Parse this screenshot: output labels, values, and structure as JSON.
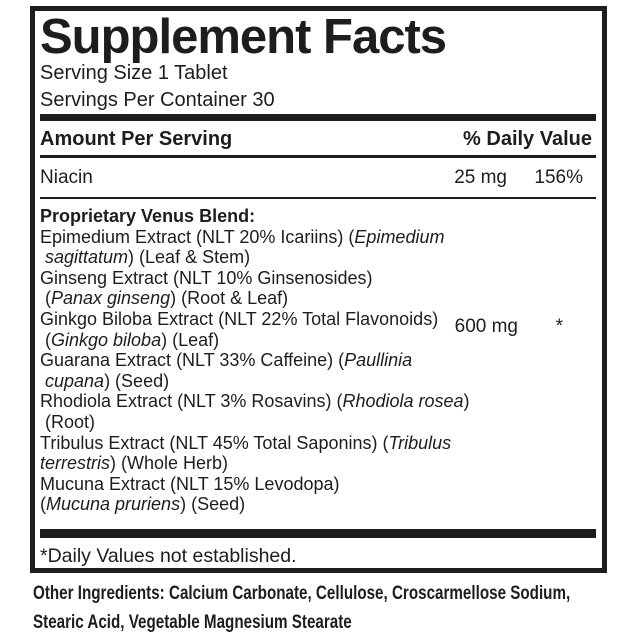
{
  "colors": {
    "ink": "#1d1d1b",
    "background": "#ffffff"
  },
  "label": {
    "title": "Supplement Facts",
    "serving_size": "Serving Size 1 Tablet",
    "servings_per_container": "Servings Per Container 30",
    "header": {
      "amount_label": "Amount Per Serving",
      "dv_label": "% Daily Value"
    },
    "rows": [
      {
        "name": "Niacin",
        "amount": "25 mg",
        "dv": "156%"
      }
    ],
    "blend": {
      "title": "Proprietary Venus Blend:",
      "amount": "600 mg",
      "dv": "*",
      "lines": [
        {
          "indent": false,
          "segments": [
            {
              "text": "Epimedium Extract (NLT 20% Icariins) (",
              "italic": false
            },
            {
              "text": "Epimedium",
              "italic": true
            }
          ]
        },
        {
          "indent": true,
          "segments": [
            {
              "text": "sagittatum",
              "italic": true
            },
            {
              "text": ") (Leaf & Stem)",
              "italic": false
            }
          ]
        },
        {
          "indent": false,
          "segments": [
            {
              "text": "Ginseng Extract (NLT 10% Ginsenosides)",
              "italic": false
            }
          ]
        },
        {
          "indent": true,
          "segments": [
            {
              "text": "(",
              "italic": false
            },
            {
              "text": "Panax ginseng",
              "italic": true
            },
            {
              "text": ") (Root & Leaf)",
              "italic": false
            }
          ]
        },
        {
          "indent": false,
          "segments": [
            {
              "text": "Ginkgo Biloba Extract (NLT 22% Total Flavonoids)",
              "italic": false
            }
          ]
        },
        {
          "indent": true,
          "segments": [
            {
              "text": "(",
              "italic": false
            },
            {
              "text": "Ginkgo biloba",
              "italic": true
            },
            {
              "text": ") (Leaf)",
              "italic": false
            }
          ]
        },
        {
          "indent": false,
          "segments": [
            {
              "text": "Guarana Extract (NLT 33% Caffeine) (",
              "italic": false
            },
            {
              "text": "Paullinia",
              "italic": true
            }
          ]
        },
        {
          "indent": true,
          "segments": [
            {
              "text": "cupana",
              "italic": true
            },
            {
              "text": ") (Seed)",
              "italic": false
            }
          ]
        },
        {
          "indent": false,
          "segments": [
            {
              "text": "Rhodiola Extract (NLT 3% Rosavins) (",
              "italic": false
            },
            {
              "text": "Rhodiola rosea",
              "italic": true
            },
            {
              "text": ")",
              "italic": false
            }
          ]
        },
        {
          "indent": true,
          "segments": [
            {
              "text": "(Root)",
              "italic": false
            }
          ]
        },
        {
          "indent": false,
          "segments": [
            {
              "text": "Tribulus Extract (NLT 45% Total Saponins) (",
              "italic": false
            },
            {
              "text": "Tribulus",
              "italic": true
            }
          ]
        },
        {
          "indent": false,
          "segments": [
            {
              "text": "terrestris",
              "italic": true
            },
            {
              "text": ") (Whole Herb)",
              "italic": false
            }
          ]
        },
        {
          "indent": false,
          "segments": [
            {
              "text": "Mucuna Extract (NLT 15% Levodopa)",
              "italic": false
            }
          ]
        },
        {
          "indent": false,
          "segments": [
            {
              "text": "(",
              "italic": false
            },
            {
              "text": "Mucuna pruriens",
              "italic": true
            },
            {
              "text": ") (Seed)",
              "italic": false
            }
          ]
        }
      ]
    },
    "footnote": "*Daily Values not established."
  },
  "other_ingredients": {
    "lines": [
      "Other Ingredients: Calcium Carbonate, Cellulose, Croscarmellose Sodium,",
      "Stearic Acid, Vegetable Magnesium Stearate"
    ]
  }
}
